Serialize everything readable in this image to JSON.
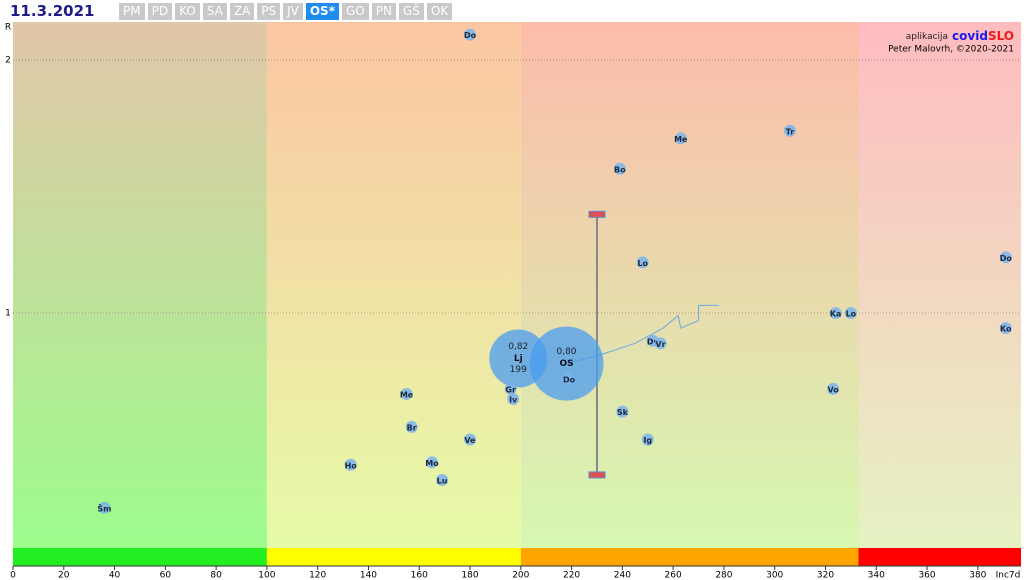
{
  "header": {
    "date": "11.3.2021",
    "tabs": [
      "PM",
      "PD",
      "KO",
      "SA",
      "ZA",
      "PS",
      "JV",
      "OS*",
      "GO",
      "PN",
      "GŠ",
      "OK"
    ],
    "active_tab": "OS*"
  },
  "chart_data": {
    "type": "scatter",
    "credit_app": "aplikacija",
    "credit_brand_a": "covid",
    "credit_brand_b": "SLO",
    "credit_author": "Peter Malovrh, ©2020-2021",
    "x_label": "Inc7d",
    "y_label": "R",
    "xlim": [
      0,
      397
    ],
    "ylim": [
      0,
      2.15
    ],
    "xticks": [
      0,
      20,
      40,
      60,
      80,
      100,
      120,
      140,
      160,
      180,
      200,
      220,
      240,
      260,
      280,
      300,
      320,
      340,
      360,
      380
    ],
    "yticks": [
      1,
      2
    ],
    "grid": true,
    "zones": [
      {
        "from": 0,
        "to": 100,
        "top": "#e2c6a8",
        "bottom": "#9cfc8c",
        "strip": "#22ee22"
      },
      {
        "from": 100,
        "to": 200,
        "top": "#fcc6a2",
        "bottom": "#e6fca8",
        "strip": "#ffff00"
      },
      {
        "from": 200,
        "to": 333,
        "top": "#fcbcaa",
        "bottom": "#d6f8b0",
        "strip": "#ffa500"
      },
      {
        "from": 333,
        "to": 397,
        "top": "#ffbcc0",
        "bottom": "#e6f2c2",
        "strip": "#ff0000"
      }
    ],
    "point_color": "#7ab4ec",
    "points": {
      "labels": [
        "Do",
        "Me",
        "Tr",
        "Bo",
        "Lo",
        "Do",
        "Ka",
        "Lo",
        "Ko",
        "Dv",
        "Vr",
        "Do",
        "Gr",
        "Iv",
        "Me",
        "Sk",
        "Vo",
        "Br",
        "Ve",
        "Ig",
        "Ho",
        "Mo",
        "Lu",
        "Šm"
      ],
      "x": [
        180,
        263,
        306,
        239,
        248,
        391,
        324,
        330,
        391,
        252,
        255,
        219,
        196,
        197,
        155,
        240,
        323,
        157,
        180,
        250,
        133,
        165,
        169,
        36
      ],
      "y": [
        2.1,
        1.69,
        1.72,
        1.57,
        1.2,
        1.22,
        1.0,
        1.0,
        0.94,
        0.89,
        0.88,
        0.74,
        0.7,
        0.66,
        0.68,
        0.61,
        0.7,
        0.55,
        0.5,
        0.5,
        0.4,
        0.41,
        0.34,
        0.23
      ]
    },
    "bubbles": [
      {
        "name": "Lj",
        "x": 199,
        "y": 0.82,
        "value_labels": [
          "0,82",
          "199"
        ]
      },
      {
        "name": "OS",
        "x": 218,
        "y": 0.8,
        "value_labels": [
          "0,80"
        ]
      }
    ],
    "trail": {
      "x": [
        218,
        230,
        245,
        256,
        262,
        263,
        270,
        270,
        278
      ],
      "y": [
        0.8,
        0.83,
        0.88,
        0.94,
        0.99,
        0.94,
        0.97,
        1.03,
        1.03
      ]
    },
    "range": {
      "x": 230,
      "low": 0.36,
      "high": 1.39
    }
  }
}
